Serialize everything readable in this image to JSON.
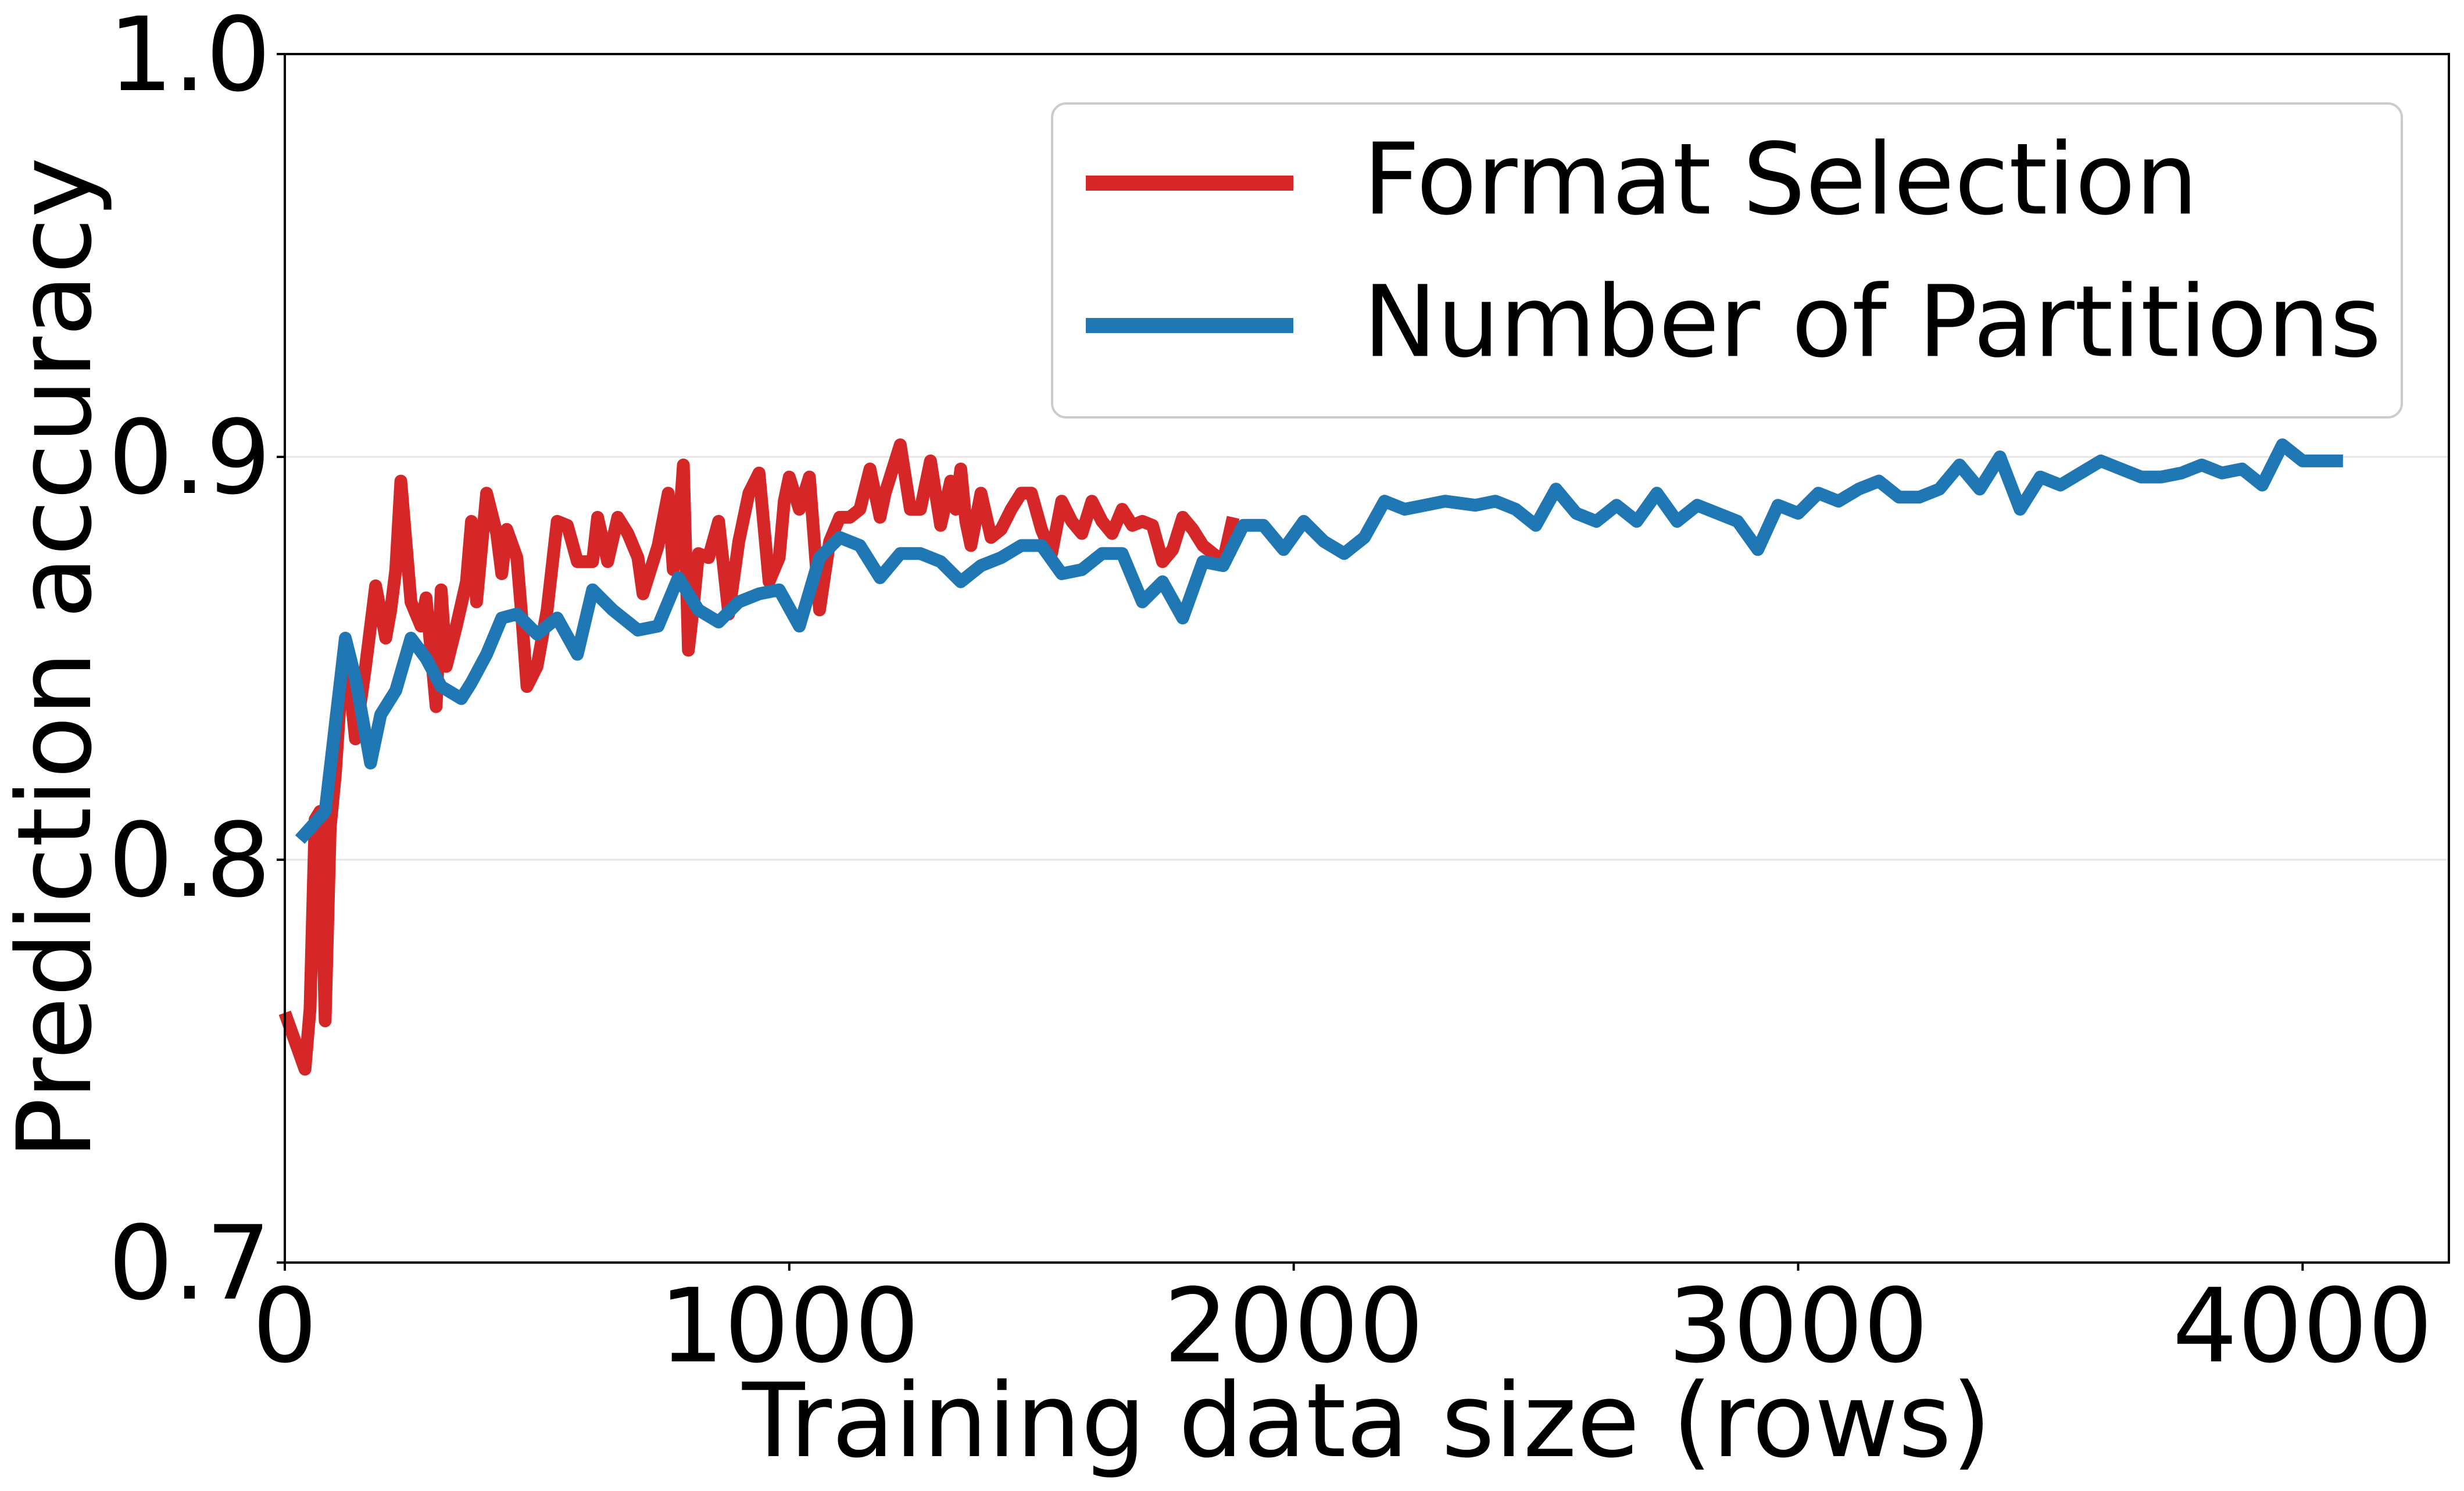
{
  "chart_data": {
    "type": "line",
    "title": "",
    "xlabel": "Training data size (rows)",
    "ylabel": "Prediction accuracy",
    "xlim": [
      0,
      4290
    ],
    "ylim": [
      0.7,
      1.0
    ],
    "xticks": [
      0,
      1000,
      2000,
      3000,
      4000
    ],
    "xtick_labels": [
      "0",
      "1000",
      "2000",
      "3000",
      "4000"
    ],
    "yticks": [
      0.7,
      0.8,
      0.9,
      1.0
    ],
    "ytick_labels": [
      "0.7",
      "0.8",
      "0.9",
      "1.0"
    ],
    "grid": "horizontal",
    "legend_position": "top-right",
    "series": [
      {
        "name": "Format Selection",
        "color": "#d62728",
        "x": [
          0,
          40,
          50,
          60,
          70,
          80,
          90,
          100,
          110,
          120,
          140,
          160,
          180,
          200,
          210,
          220,
          230,
          250,
          270,
          280,
          300,
          310,
          320,
          340,
          360,
          370,
          380,
          400,
          420,
          430,
          440,
          460,
          470,
          480,
          500,
          520,
          540,
          560,
          580,
          610,
          620,
          640,
          660,
          680,
          700,
          710,
          720,
          740,
          760,
          770,
          780,
          790,
          800,
          810,
          820,
          840,
          860,
          880,
          900,
          920,
          940,
          960,
          980,
          990,
          1000,
          1020,
          1040,
          1060,
          1080,
          1100,
          1120,
          1140,
          1160,
          1180,
          1190,
          1200,
          1220,
          1240,
          1260,
          1280,
          1300,
          1320,
          1330,
          1340,
          1350,
          1360,
          1380,
          1400,
          1420,
          1440,
          1460,
          1480,
          1500,
          1520,
          1540,
          1560,
          1580,
          1600,
          1620,
          1640,
          1660,
          1680,
          1700,
          1720,
          1740,
          1760,
          1780,
          1800,
          1820,
          1840,
          1860,
          1880
        ],
        "y": [
          0.762,
          0.748,
          0.763,
          0.81,
          0.812,
          0.76,
          0.808,
          0.821,
          0.84,
          0.854,
          0.83,
          0.848,
          0.868,
          0.855,
          0.862,
          0.872,
          0.894,
          0.864,
          0.858,
          0.865,
          0.838,
          0.867,
          0.848,
          0.858,
          0.869,
          0.884,
          0.864,
          0.891,
          0.881,
          0.871,
          0.882,
          0.875,
          0.86,
          0.843,
          0.848,
          0.862,
          0.884,
          0.883,
          0.874,
          0.874,
          0.885,
          0.874,
          0.885,
          0.881,
          0.875,
          0.866,
          0.87,
          0.878,
          0.891,
          0.872,
          0.88,
          0.898,
          0.852,
          0.863,
          0.876,
          0.875,
          0.884,
          0.861,
          0.879,
          0.891,
          0.896,
          0.869,
          0.875,
          0.889,
          0.895,
          0.887,
          0.895,
          0.862,
          0.879,
          0.885,
          0.885,
          0.887,
          0.897,
          0.885,
          0.891,
          0.895,
          0.903,
          0.887,
          0.887,
          0.899,
          0.883,
          0.894,
          0.887,
          0.897,
          0.884,
          0.878,
          0.891,
          0.88,
          0.882,
          0.887,
          0.891,
          0.891,
          0.882,
          0.876,
          0.889,
          0.884,
          0.881,
          0.889,
          0.884,
          0.881,
          0.887,
          0.883,
          0.884,
          0.883,
          0.874,
          0.877,
          0.885,
          0.882,
          0.878,
          0.876,
          0.874,
          0.885
        ],
        "note_x_order": "fraction"
      },
      {
        "name": "Number of Partitions",
        "color": "#1f77b4",
        "x": [
          30,
          80,
          120,
          140,
          170,
          190,
          220,
          250,
          280,
          310,
          350,
          370,
          400,
          430,
          460,
          500,
          540,
          580,
          610,
          650,
          700,
          740,
          780,
          820,
          860,
          900,
          940,
          980,
          1020,
          1060,
          1100,
          1140,
          1180,
          1220,
          1260,
          1300,
          1340,
          1380,
          1420,
          1460,
          1500,
          1540,
          1580,
          1620,
          1660,
          1700,
          1740,
          1780,
          1820,
          1860,
          1900,
          1940,
          1980,
          2020,
          2060,
          2100,
          2140,
          2180,
          2220,
          2260,
          2300,
          2360,
          2400,
          2440,
          2480,
          2520,
          2560,
          2600,
          2640,
          2680,
          2720,
          2760,
          2800,
          2840,
          2880,
          2920,
          2960,
          3000,
          3040,
          3080,
          3120,
          3160,
          3200,
          3240,
          3280,
          3320,
          3360,
          3400,
          3440,
          3480,
          3520,
          3560,
          3600,
          3640,
          3680,
          3720,
          3760,
          3800,
          3840,
          3880,
          3920,
          3960,
          4000,
          4040,
          4080
        ],
        "y": [
          0.805,
          0.812,
          0.855,
          0.845,
          0.824,
          0.836,
          0.842,
          0.855,
          0.85,
          0.843,
          0.84,
          0.844,
          0.851,
          0.86,
          0.861,
          0.856,
          0.86,
          0.851,
          0.867,
          0.862,
          0.857,
          0.858,
          0.87,
          0.862,
          0.859,
          0.864,
          0.866,
          0.867,
          0.858,
          0.875,
          0.88,
          0.878,
          0.87,
          0.876,
          0.876,
          0.874,
          0.869,
          0.873,
          0.875,
          0.878,
          0.878,
          0.871,
          0.872,
          0.876,
          0.876,
          0.864,
          0.869,
          0.86,
          0.874,
          0.873,
          0.883,
          0.883,
          0.877,
          0.884,
          0.879,
          0.876,
          0.88,
          0.889,
          0.887,
          0.888,
          0.889,
          0.888,
          0.889,
          0.887,
          0.883,
          0.892,
          0.886,
          0.884,
          0.888,
          0.884,
          0.891,
          0.884,
          0.888,
          0.886,
          0.884,
          0.877,
          0.888,
          0.886,
          0.891,
          0.889,
          0.892,
          0.894,
          0.89,
          0.89,
          0.892,
          0.898,
          0.892,
          0.9,
          0.887,
          0.895,
          0.893,
          0.896,
          0.899,
          0.897,
          0.895,
          0.895,
          0.896,
          0.898,
          0.896,
          0.897,
          0.893,
          0.903,
          0.899,
          0.899,
          0.899
        ]
      }
    ]
  }
}
